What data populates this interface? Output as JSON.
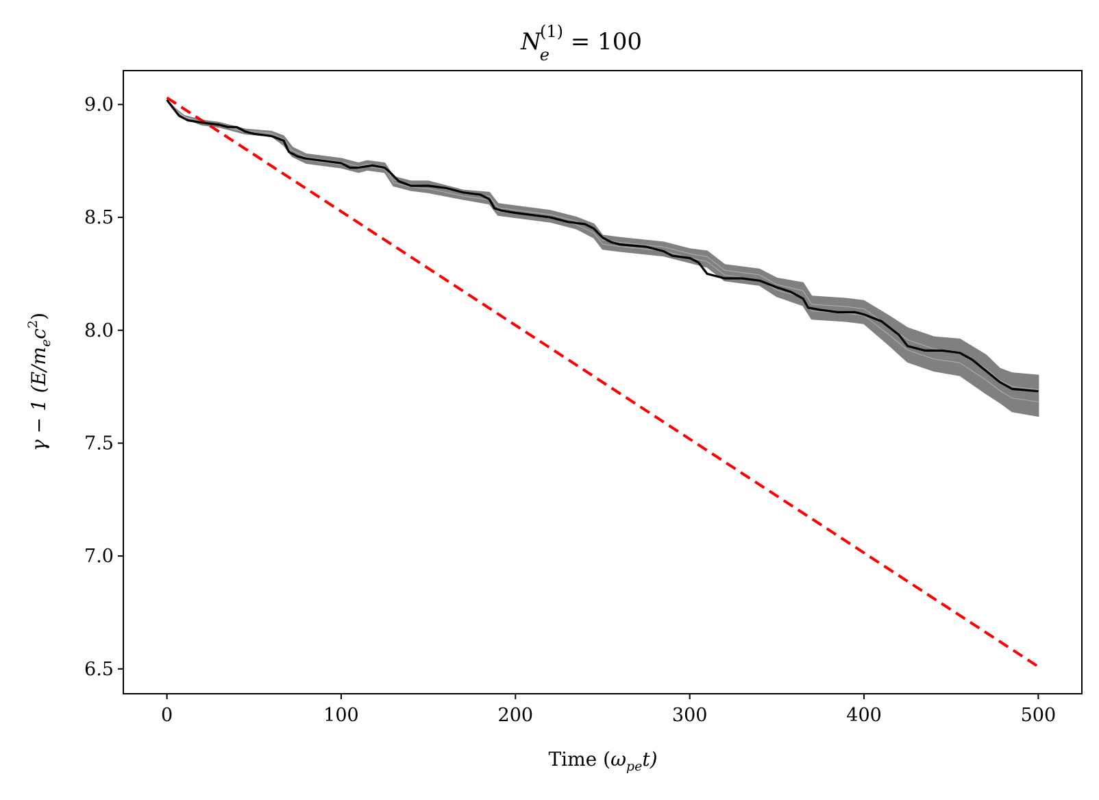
{
  "chart_data": {
    "type": "line",
    "title": "N_e^(1) = 100",
    "title_parts": {
      "base": "N",
      "sub": "e",
      "sup": "(1)",
      "rest": " = 100"
    },
    "xlabel": "Time (ω_pe t)",
    "xlabel_parts": {
      "pre": "Time (",
      "sym": "ω",
      "sub": "pe",
      "post": "t)"
    },
    "ylabel": "γ − 1 (E/m_e c²)",
    "ylabel_parts": {
      "pre": "γ − 1  (E/m",
      "sub": "e",
      "mid": "c",
      "sup": "2",
      "post": ")"
    },
    "xlim": [
      -25,
      525
    ],
    "ylim": [
      6.39,
      9.15
    ],
    "xticks": [
      0,
      100,
      200,
      300,
      400,
      500
    ],
    "xtick_labels": [
      "0",
      "100",
      "200",
      "300",
      "400",
      "500"
    ],
    "yticks": [
      6.5,
      7.0,
      7.5,
      8.0,
      8.5,
      9.0
    ],
    "ytick_labels": [
      "6.5",
      "7.0",
      "7.5",
      "8.0",
      "8.5",
      "9.0"
    ],
    "grid": false,
    "legend": "none",
    "colors": {
      "ensemble": "#808080",
      "mean": "#000000",
      "reference": "#ff0000"
    },
    "series": [
      {
        "role": "ensemble-band",
        "x": [
          0,
          5,
          10,
          20,
          30,
          40,
          45,
          60,
          67,
          72,
          80,
          100,
          110,
          115,
          125,
          130,
          140,
          150,
          170,
          185,
          190,
          200,
          220,
          235,
          245,
          250,
          260,
          285,
          300,
          310,
          320,
          340,
          350,
          365,
          370,
          390,
          400,
          415,
          425,
          440,
          455,
          470,
          478,
          485,
          500
        ],
        "upper": [
          9.02,
          8.98,
          8.95,
          8.93,
          8.92,
          8.9,
          8.89,
          8.88,
          8.86,
          8.81,
          8.78,
          8.76,
          8.74,
          8.75,
          8.74,
          8.68,
          8.66,
          8.66,
          8.62,
          8.61,
          8.56,
          8.55,
          8.53,
          8.5,
          8.47,
          8.42,
          8.41,
          8.39,
          8.36,
          8.35,
          8.29,
          8.27,
          8.23,
          8.21,
          8.15,
          8.14,
          8.13,
          8.06,
          8.01,
          7.97,
          7.96,
          7.89,
          7.83,
          7.81,
          7.8
        ],
        "lower": [
          9.02,
          8.97,
          8.94,
          8.91,
          8.9,
          8.88,
          8.87,
          8.86,
          8.82,
          8.77,
          8.74,
          8.72,
          8.7,
          8.71,
          8.7,
          8.64,
          8.62,
          8.61,
          8.58,
          8.56,
          8.51,
          8.5,
          8.48,
          8.45,
          8.41,
          8.36,
          8.35,
          8.33,
          8.3,
          8.28,
          8.22,
          8.2,
          8.15,
          8.11,
          8.05,
          8.04,
          8.03,
          7.93,
          7.86,
          7.82,
          7.8,
          7.72,
          7.68,
          7.64,
          7.62
        ]
      },
      {
        "role": "mean",
        "x": [
          0,
          3,
          7,
          12,
          20,
          30,
          35,
          40,
          45,
          50,
          60,
          67,
          70,
          75,
          80,
          90,
          100,
          105,
          110,
          118,
          125,
          128,
          133,
          140,
          150,
          160,
          170,
          180,
          185,
          188,
          192,
          200,
          210,
          220,
          230,
          240,
          245,
          250,
          255,
          260,
          275,
          285,
          290,
          300,
          305,
          310,
          320,
          330,
          340,
          350,
          358,
          365,
          368,
          375,
          385,
          395,
          400,
          410,
          415,
          420,
          425,
          435,
          445,
          455,
          462,
          470,
          478,
          485,
          500
        ],
        "y": [
          9.02,
          8.99,
          8.95,
          8.93,
          8.92,
          8.91,
          8.9,
          8.9,
          8.88,
          8.87,
          8.86,
          8.84,
          8.79,
          8.77,
          8.76,
          8.75,
          8.74,
          8.72,
          8.72,
          8.73,
          8.72,
          8.7,
          8.66,
          8.64,
          8.64,
          8.63,
          8.61,
          8.6,
          8.58,
          8.54,
          8.53,
          8.52,
          8.51,
          8.5,
          8.48,
          8.47,
          8.45,
          8.41,
          8.39,
          8.38,
          8.37,
          8.35,
          8.33,
          8.32,
          8.3,
          8.25,
          8.23,
          8.23,
          8.22,
          8.19,
          8.17,
          8.14,
          8.1,
          8.09,
          8.08,
          8.08,
          8.07,
          8.04,
          8.01,
          7.98,
          7.93,
          7.91,
          7.91,
          7.9,
          7.87,
          7.82,
          7.77,
          7.74,
          7.73
        ]
      },
      {
        "role": "reference",
        "x": [
          0,
          500
        ],
        "y": [
          9.03,
          6.51
        ]
      }
    ]
  }
}
